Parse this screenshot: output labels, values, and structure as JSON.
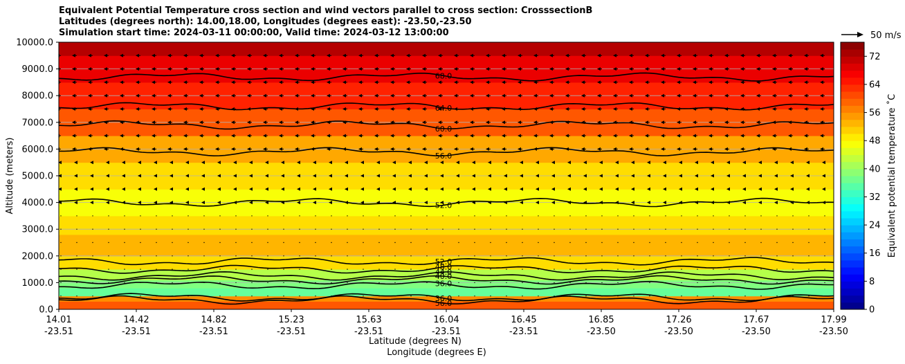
{
  "chart_data": {
    "type": "heatmap",
    "title_lines": [
      "Equivalent Potential Temperature cross section and wind vectors parallel to cross section: CrosssectionB",
      "Latitudes (degrees north): 14.00,18.00, Longitudes (degrees east): -23.50,-23.50",
      "Simulation start time: 2024-03-11 00:00:00, Valid time: 2024-03-12 13:00:00"
    ],
    "xlabel_lat": "Latitude (degrees N)",
    "xlabel_lon": "Longitude (degrees E)",
    "ylabel": "Altitude (meters)",
    "ylim": [
      0,
      10000
    ],
    "y_ticks": [
      "0.0",
      "1000.0",
      "2000.0",
      "3000.0",
      "4000.0",
      "5000.0",
      "6000.0",
      "7000.0",
      "8000.0",
      "9000.0",
      "10000.0"
    ],
    "x_ticks": [
      {
        "lat": "14.01",
        "lon": "-23.51"
      },
      {
        "lat": "14.42",
        "lon": "-23.51"
      },
      {
        "lat": "14.82",
        "lon": "-23.51"
      },
      {
        "lat": "15.23",
        "lon": "-23.51"
      },
      {
        "lat": "15.63",
        "lon": "-23.51"
      },
      {
        "lat": "16.04",
        "lon": "-23.51"
      },
      {
        "lat": "16.45",
        "lon": "-23.51"
      },
      {
        "lat": "16.85",
        "lon": "-23.50"
      },
      {
        "lat": "17.26",
        "lon": "-23.50"
      },
      {
        "lat": "17.67",
        "lon": "-23.50"
      },
      {
        "lat": "17.99",
        "lon": "-23.50"
      }
    ],
    "colorbar": {
      "label": "Equivalent potential temperature ˚C",
      "min": 0,
      "max": 76,
      "ticks": [
        "0",
        "8",
        "16",
        "24",
        "32",
        "40",
        "48",
        "56",
        "64",
        "72"
      ]
    },
    "quiver_key": "50 m/s",
    "contour_levels": [
      {
        "label": "68.0",
        "altitude": 8700
      },
      {
        "label": "64.0",
        "altitude": 7600
      },
      {
        "label": "60.0",
        "altitude": 6900
      },
      {
        "label": "56.0",
        "altitude": 5900
      },
      {
        "label": "52.0",
        "altitude": 4000
      },
      {
        "label": "52.0",
        "altitude": 1800
      },
      {
        "label": "48.0",
        "altitude": 1500
      },
      {
        "label": "44.0",
        "altitude": 1250
      },
      {
        "label": "40.0",
        "altitude": 1100
      },
      {
        "label": "36.0",
        "altitude": 900
      },
      {
        "label": "36.0",
        "altitude": 450
      },
      {
        "label": "56.0",
        "altitude": 350
      }
    ],
    "theta_e_bands": [
      {
        "alt": 0,
        "value": 60
      },
      {
        "alt": 300,
        "value": 56
      },
      {
        "alt": 500,
        "value": 36
      },
      {
        "alt": 800,
        "value": 38
      },
      {
        "alt": 1100,
        "value": 42
      },
      {
        "alt": 1500,
        "value": 50
      },
      {
        "alt": 2000,
        "value": 53
      },
      {
        "alt": 2800,
        "value": 50
      },
      {
        "alt": 3500,
        "value": 47
      },
      {
        "alt": 4500,
        "value": 50
      },
      {
        "alt": 5500,
        "value": 54
      },
      {
        "alt": 6500,
        "value": 60
      },
      {
        "alt": 7500,
        "value": 64
      },
      {
        "alt": 8500,
        "value": 68
      },
      {
        "alt": 9500,
        "value": 72
      },
      {
        "alt": 10000,
        "value": 74
      }
    ]
  }
}
